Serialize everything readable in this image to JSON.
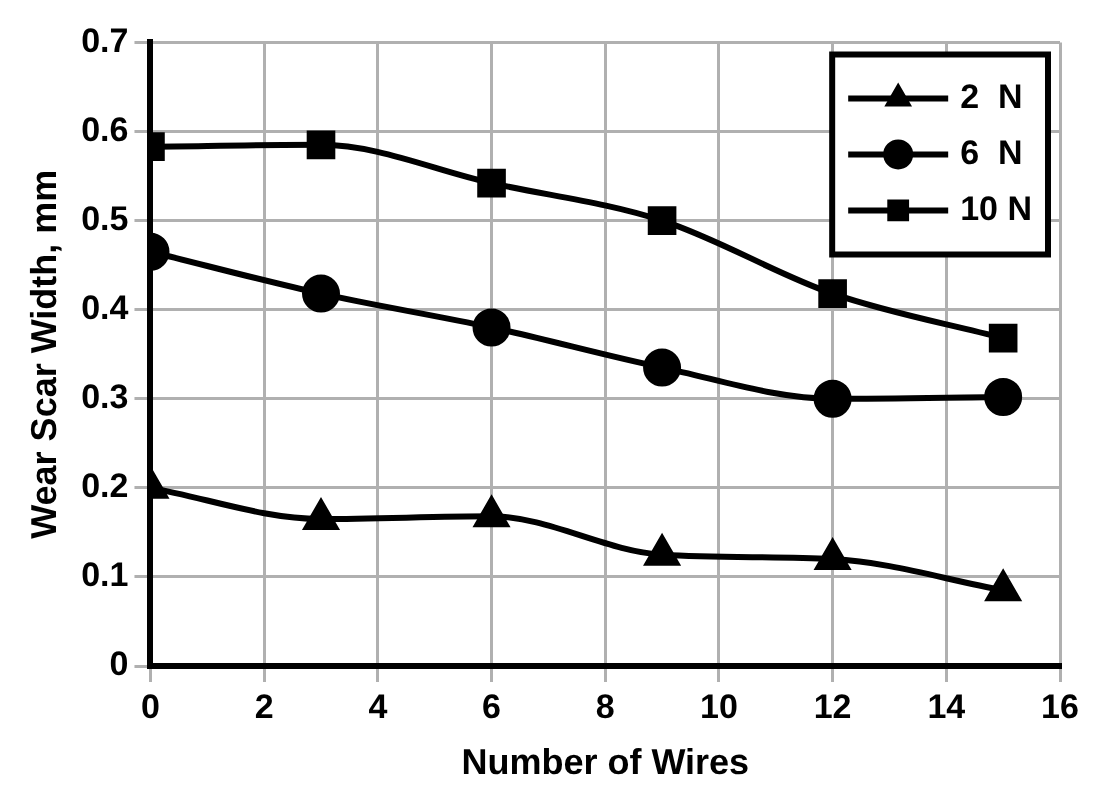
{
  "chart_data": {
    "type": "line",
    "xlabel": "Number of Wires",
    "ylabel": "Wear Scar Width, mm",
    "x": [
      0,
      3,
      6,
      9,
      12,
      15
    ],
    "series": [
      {
        "name": "2  N",
        "color": "#000000",
        "marker": "triangle",
        "values": [
          0.2,
          0.165,
          0.168,
          0.125,
          0.12,
          0.085
        ]
      },
      {
        "name": "6  N",
        "color": "#000000",
        "marker": "circle",
        "values": [
          0.465,
          0.418,
          0.38,
          0.335,
          0.3,
          0.302
        ]
      },
      {
        "name": "10 N",
        "color": "#000000",
        "marker": "square",
        "values": [
          0.583,
          0.585,
          0.542,
          0.5,
          0.418,
          0.368
        ]
      }
    ],
    "xlim": [
      0,
      16
    ],
    "xticks": [
      0,
      2,
      4,
      6,
      8,
      10,
      12,
      14,
      16
    ],
    "ylim": [
      0,
      0.7
    ],
    "yticks": [
      0,
      0.1,
      0.2,
      0.3,
      0.4,
      0.5,
      0.6,
      0.7
    ],
    "grid": true,
    "legend": "top right",
    "line_style": "solid"
  }
}
